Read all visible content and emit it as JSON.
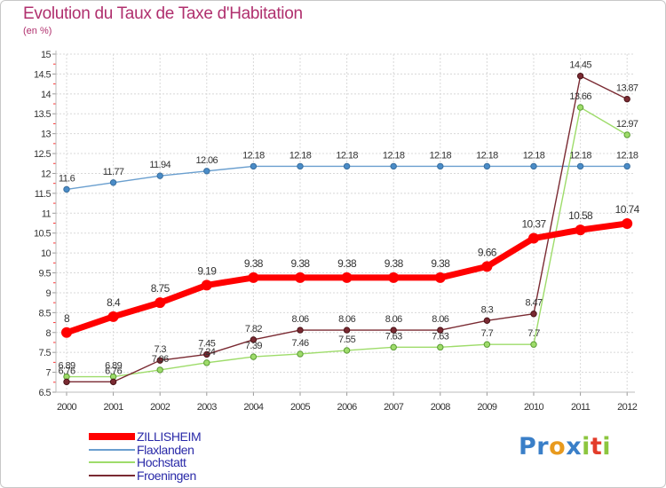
{
  "header": {
    "title": "Evolution du Taux de Taxe d'Habitation",
    "unit": "(en %)"
  },
  "logo": {
    "text": "Proxiti",
    "letters": [
      {
        "ch": "P",
        "color": "#3a7fc8"
      },
      {
        "ch": "r",
        "color": "#3a7fc8"
      },
      {
        "ch": "o",
        "color": "#e89a1e"
      },
      {
        "ch": "x",
        "color": "#3a7fc8"
      },
      {
        "ch": "i",
        "color": "#8cc63f"
      },
      {
        "ch": "t",
        "color": "#e33c2a"
      },
      {
        "ch": "i",
        "color": "#8cc63f"
      }
    ]
  },
  "chart_data": {
    "type": "line",
    "title": "Evolution du Taux de Taxe d'Habitation",
    "ylabel": "(en %)",
    "xlabel": "",
    "x": [
      "2000",
      "2001",
      "2002",
      "2003",
      "2004",
      "2005",
      "2006",
      "2007",
      "2008",
      "2009",
      "2010",
      "2011",
      "2012"
    ],
    "ylim": [
      6.5,
      15
    ],
    "yticks": [
      "6.5",
      "7",
      "7.5",
      "8",
      "8.5",
      "9",
      "9.5",
      "10",
      "10.5",
      "11",
      "11.5",
      "12",
      "12.5",
      "13",
      "13.5",
      "14",
      "14.5",
      "15"
    ],
    "grid": true,
    "legend": "bottom-left",
    "series": [
      {
        "name": "ZILLISHEIM",
        "color": "#ff0000",
        "values": [
          8,
          8.4,
          8.75,
          9.19,
          9.38,
          9.38,
          9.38,
          9.38,
          9.38,
          9.66,
          10.37,
          10.58,
          10.74
        ],
        "labels": [
          "8",
          "8.4",
          "8.75",
          "9.19",
          "9.38",
          "9.38",
          "9.38",
          "9.38",
          "9.38",
          "9.66",
          "10.37",
          "10.58",
          "10.74"
        ]
      },
      {
        "name": "Flaxlanden",
        "color": "#6a9fcf",
        "values": [
          11.6,
          11.77,
          11.94,
          12.06,
          12.18,
          12.18,
          12.18,
          12.18,
          12.18,
          12.18,
          12.18,
          12.18,
          12.18
        ],
        "labels": [
          "11.6",
          "11.77",
          "11.94",
          "12.06",
          "12.18",
          "12.18",
          "12.18",
          "12.18",
          "12.18",
          "12.18",
          "12.18",
          "12.18",
          "12.18"
        ]
      },
      {
        "name": "Hochstatt",
        "color": "#9edc6a",
        "values": [
          6.89,
          6.89,
          7.06,
          7.24,
          7.39,
          7.46,
          7.55,
          7.63,
          7.63,
          7.7,
          7.7,
          13.66,
          12.97
        ],
        "labels": [
          "6.89",
          "6.89",
          "7.06",
          "7.24",
          "7.39",
          "7.46",
          "7.55",
          "7.63",
          "7.63",
          "7.7",
          "7.7",
          "13.66",
          "12.97"
        ]
      },
      {
        "name": "Froeningen",
        "color": "#7a2a32",
        "values": [
          6.76,
          6.76,
          7.3,
          7.45,
          7.82,
          8.06,
          8.06,
          8.06,
          8.06,
          8.3,
          8.47,
          14.45,
          13.87
        ],
        "labels": [
          "6.76",
          "6.76",
          "7.3",
          "7.45",
          "7.82",
          "8.06",
          "8.06",
          "8.06",
          "8.06",
          "8.3",
          "8.47",
          "14.45",
          "13.87"
        ]
      }
    ]
  }
}
